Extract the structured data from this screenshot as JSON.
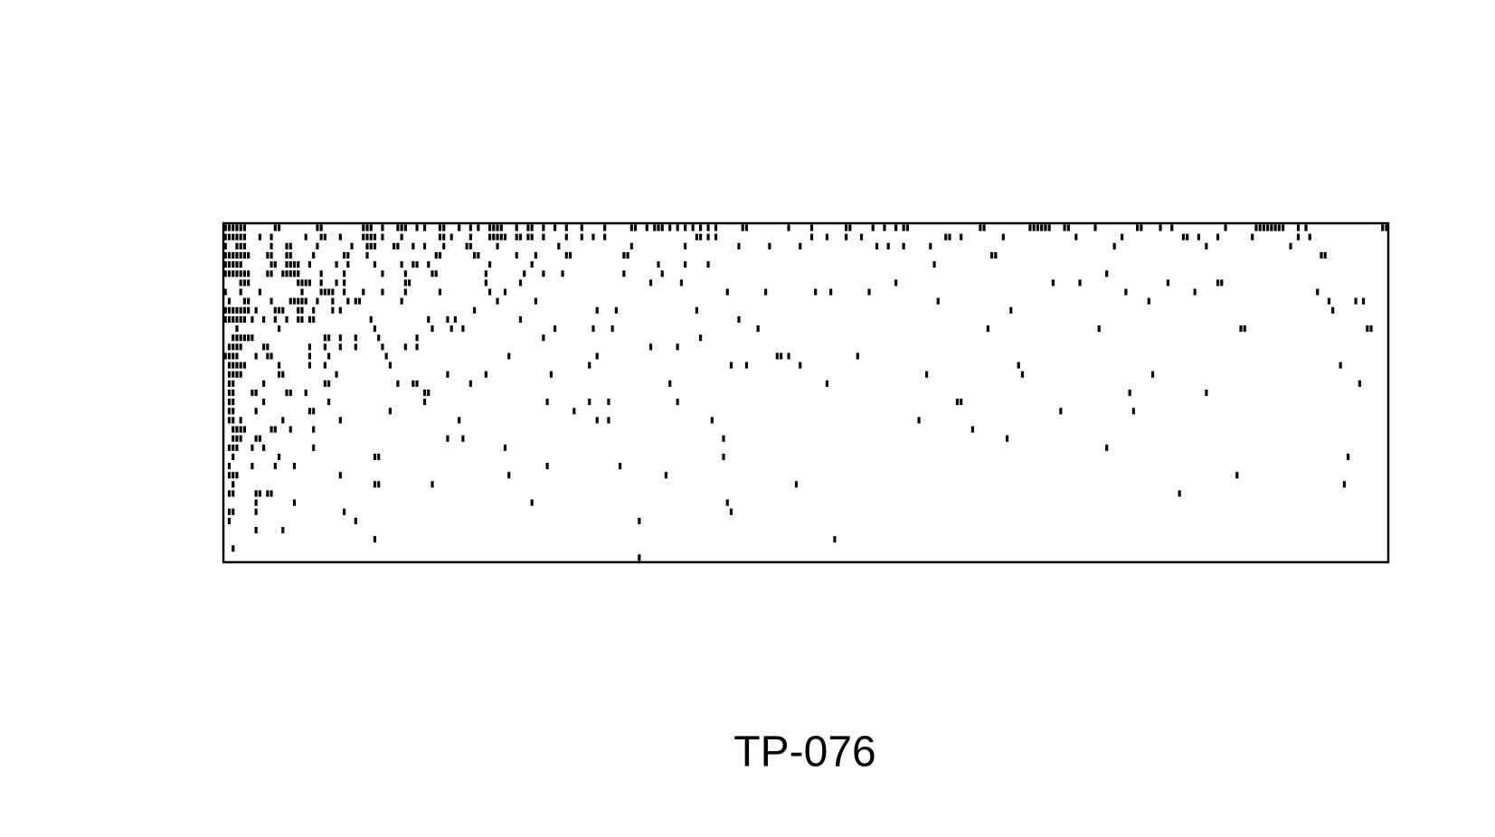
{
  "chart_data": {
    "type": "spy",
    "title": "TP-076",
    "nrows": 37,
    "ncols": 304,
    "color": "#000000",
    "rows": [
      [
        0,
        1,
        2,
        3,
        4,
        5,
        13,
        14,
        24,
        25,
        36,
        37,
        38,
        41,
        45,
        46,
        47,
        50,
        52,
        56,
        57,
        61,
        64,
        66,
        69,
        70,
        71,
        72,
        76,
        79,
        80,
        83,
        86,
        89,
        93,
        99,
        106,
        107,
        110,
        112,
        113,
        114,
        116,
        118,
        120,
        122,
        124,
        126,
        128,
        135,
        136,
        147,
        153,
        162,
        163,
        169,
        172,
        175,
        177,
        178,
        197,
        198,
        210,
        211,
        212,
        213,
        214,
        215,
        219,
        220,
        227,
        238,
        239,
        244,
        247,
        261,
        269,
        270,
        271,
        272,
        273,
        274,
        275,
        276,
        280,
        282,
        302,
        303
      ],
      [
        0,
        1,
        2,
        3,
        4,
        5,
        9,
        12,
        21,
        25,
        26,
        30,
        36,
        37,
        38,
        39,
        41,
        46,
        56,
        57,
        59,
        64,
        69,
        70,
        71,
        72,
        73,
        76,
        77,
        79,
        80,
        83,
        89,
        93,
        96,
        99,
        123,
        124,
        126,
        128,
        153,
        157,
        162,
        166,
        188,
        189,
        192,
        203,
        222,
        234,
        250,
        251,
        254,
        259,
        268,
        280,
        283
      ],
      [
        0,
        3,
        4,
        5,
        12,
        16,
        17,
        24,
        33,
        37,
        38,
        39,
        44,
        45,
        49,
        52,
        57,
        63,
        64,
        71,
        87,
        106,
        120,
        134,
        142,
        150,
        170,
        173,
        177,
        184,
        232,
        256,
        278
      ],
      [
        0,
        1,
        2,
        3,
        4,
        5,
        6,
        11,
        12,
        16,
        17,
        23,
        31,
        32,
        37,
        55,
        56,
        65,
        66,
        76,
        81,
        89,
        90,
        104,
        105,
        200,
        201,
        286,
        287
      ],
      [
        0,
        1,
        2,
        3,
        4,
        12,
        13,
        16,
        17,
        18,
        19,
        22,
        29,
        32,
        39,
        46,
        49,
        50,
        53,
        69,
        80,
        113,
        120,
        126,
        185
      ],
      [
        0,
        1,
        2,
        3,
        4,
        5,
        6,
        11,
        12,
        15,
        16,
        17,
        18,
        19,
        25,
        31,
        41,
        47,
        54,
        55,
        68,
        78,
        83,
        88,
        104,
        114,
        230
      ],
      [
        4,
        5,
        6,
        19,
        20,
        21,
        22,
        25,
        29,
        31,
        47,
        48,
        68,
        77,
        111,
        119,
        175,
        216,
        223,
        246,
        259,
        260
      ],
      [
        0,
        4,
        9,
        20,
        25,
        26,
        27,
        28,
        31,
        36,
        41,
        47,
        56,
        69,
        73,
        131,
        141,
        154,
        158,
        168,
        235,
        253,
        285
      ],
      [
        1,
        5,
        6,
        12,
        17,
        18,
        19,
        20,
        21,
        24,
        28,
        32,
        34,
        35,
        46,
        71,
        81,
        186,
        241,
        288,
        295,
        297
      ],
      [
        0,
        1,
        2,
        3,
        4,
        5,
        6,
        8,
        13,
        14,
        15,
        19,
        20,
        23,
        28,
        30,
        65,
        97,
        102,
        123,
        205,
        289
      ],
      [
        0,
        1,
        2,
        3,
        4,
        5,
        7,
        10,
        13,
        16,
        19,
        20,
        22,
        23,
        38,
        53,
        58,
        60,
        77,
        134
      ],
      [
        3,
        14,
        39,
        54,
        59,
        62,
        86,
        96,
        101,
        139,
        199,
        228,
        265,
        266,
        298,
        299
      ],
      [
        2,
        3,
        4,
        5,
        6,
        7,
        26,
        27,
        30,
        34,
        40,
        50,
        83,
        124
      ],
      [
        1,
        2,
        3,
        4,
        10,
        11,
        22,
        26,
        30,
        34,
        41,
        47,
        50,
        111,
        118
      ],
      [
        0,
        1,
        2,
        3,
        8,
        11,
        12,
        22,
        27,
        42,
        74,
        97,
        144,
        145,
        147,
        165
      ],
      [
        1,
        2,
        3,
        4,
        5,
        14,
        22,
        26,
        43,
        95,
        132,
        136,
        150,
        207,
        291
      ],
      [
        1,
        2,
        3,
        4,
        14,
        15,
        29,
        58,
        68,
        85,
        183,
        208,
        242
      ],
      [
        1,
        2,
        10,
        26,
        27,
        45,
        49,
        50,
        64,
        116,
        157,
        296
      ],
      [
        1,
        2,
        7,
        8,
        16,
        17,
        21,
        52,
        53,
        236,
        256
      ],
      [
        1,
        2,
        10,
        27,
        52,
        84,
        95,
        100,
        118,
        191,
        192
      ],
      [
        1,
        2,
        8,
        22,
        23,
        43,
        91,
        218,
        237
      ],
      [
        1,
        2,
        4,
        15,
        30,
        61,
        97,
        100,
        127,
        181
      ],
      [
        2,
        3,
        4,
        5,
        12,
        13,
        17,
        23,
        195
      ],
      [
        2,
        3,
        4,
        8,
        9,
        58,
        62,
        130,
        204
      ],
      [
        1,
        2,
        3,
        7,
        10,
        23,
        73,
        230
      ],
      [
        2,
        14,
        39,
        40,
        130,
        293
      ],
      [
        1,
        7,
        13,
        18,
        84,
        103
      ],
      [
        1,
        2,
        3,
        30,
        74,
        115,
        264
      ],
      [
        2,
        39,
        40,
        54,
        149,
        292
      ],
      [
        1,
        2,
        8,
        9,
        11,
        12,
        249
      ],
      [
        8,
        18,
        80,
        131
      ],
      [
        1,
        2,
        8,
        31,
        132
      ],
      [
        1,
        34,
        108
      ],
      [
        8,
        15
      ],
      [
        39,
        159
      ],
      [
        2
      ],
      [
        108
      ]
    ]
  }
}
